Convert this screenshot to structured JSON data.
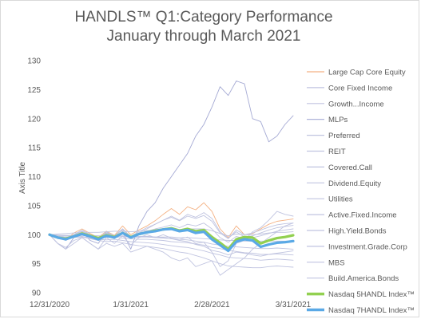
{
  "chart_data": {
    "type": "line",
    "title_line1": "HANDLS™ Q1:Category Performance",
    "title_line2": "January through March 2021",
    "ylabel": "Axis Title",
    "ylim": [
      90,
      130
    ],
    "yticks": [
      90,
      95,
      100,
      105,
      110,
      115,
      120,
      125,
      130
    ],
    "xlim": [
      "2020-12-31",
      "2021-03-31"
    ],
    "xtick_labels": [
      "12/31/2020",
      "1/31/2021",
      "2/28/2021",
      "3/31/2021"
    ],
    "grid": false,
    "legend_position": "right",
    "x": [
      0,
      3,
      6,
      9,
      12,
      15,
      18,
      21,
      24,
      27,
      30,
      33,
      36,
      39,
      42,
      45,
      48,
      51,
      54,
      57,
      60,
      63,
      66,
      69,
      72,
      75,
      78,
      81,
      84,
      87,
      90
    ],
    "series": [
      {
        "name": "Large Cap Core Equity",
        "color": "#f4b183",
        "width": 0.9,
        "values": [
          100,
          99.6,
          99.2,
          100.3,
          101,
          100.2,
          99.5,
          100.6,
          99.9,
          101.5,
          100,
          100.8,
          101.5,
          102.4,
          103.5,
          104.5,
          103.5,
          104.8,
          104.3,
          105.5,
          104,
          101,
          99.5,
          101.5,
          100,
          100.2,
          101,
          101.8,
          102.3,
          102.5,
          102.7
        ]
      },
      {
        "name": "Core Fixed Income",
        "color": "#c0c4e0",
        "width": 0.9,
        "values": [
          100,
          99.9,
          99.8,
          99.8,
          99.9,
          99.7,
          99.6,
          99.5,
          99.6,
          99.4,
          99.3,
          99.2,
          99.2,
          99.1,
          99,
          98.8,
          98.7,
          98.6,
          98.4,
          98.2,
          97.8,
          97.6,
          97.3,
          97.1,
          96.9,
          96.8,
          96.6,
          96.6,
          96.7,
          96.6,
          96.5
        ]
      },
      {
        "name": "Growth...Income",
        "color": "#c0c4e0",
        "width": 0.9,
        "values": [
          100,
          99.5,
          99,
          99.8,
          100.5,
          100,
          99.3,
          100.3,
          99.8,
          101,
          99.6,
          100.3,
          101,
          101.8,
          102.5,
          103.2,
          102.5,
          103.5,
          103,
          103.8,
          102.8,
          100.5,
          99.4,
          100.5,
          99.6,
          99.8,
          100.3,
          100.8,
          101.2,
          101.4,
          101.6
        ]
      },
      {
        "name": "MLPs",
        "color": "#a5aad4",
        "width": 0.9,
        "values": [
          100,
          98.5,
          97.5,
          99.5,
          100.5,
          99,
          98.5,
          100.5,
          99.5,
          100.5,
          97.5,
          101.5,
          104,
          105.5,
          108,
          110,
          112,
          114,
          117,
          119,
          122,
          125.5,
          124,
          126.5,
          126,
          120,
          119.5,
          116,
          117,
          119,
          120.5
        ]
      },
      {
        "name": "Preferred",
        "color": "#c0c4e0",
        "width": 0.9,
        "values": [
          100,
          99.8,
          99.6,
          99.8,
          100,
          99.8,
          99.5,
          99.7,
          99.6,
          99.8,
          99.5,
          99.6,
          99.7,
          99.6,
          99.5,
          99.3,
          99,
          98.8,
          98.3,
          98,
          97.3,
          97,
          96.5,
          97,
          96.8,
          96.5,
          96.3,
          96.6,
          96.8,
          97,
          97.2
        ]
      },
      {
        "name": "REIT",
        "color": "#c0c4e0",
        "width": 0.9,
        "values": [
          100,
          98.5,
          97.8,
          99,
          99.5,
          98.5,
          97.5,
          99.5,
          98.5,
          99.8,
          98.2,
          99.5,
          100,
          99.5,
          100,
          99.4,
          99.2,
          99.6,
          98.5,
          98.7,
          97,
          94.5,
          95.5,
          98.5,
          99,
          100.5,
          101.2,
          102.5,
          104,
          103.5,
          103.2
        ]
      },
      {
        "name": "Covered.Call",
        "color": "#c0c4e0",
        "width": 0.9,
        "values": [
          100,
          99.7,
          99.4,
          100,
          100.6,
          100,
          99.4,
          100.2,
          99.8,
          100.8,
          99.6,
          100.2,
          100.6,
          101,
          101.3,
          101.7,
          101.2,
          101.8,
          101.5,
          102,
          101,
          99.5,
          98.7,
          99.7,
          99.3,
          99.5,
          99.8,
          100.2,
          100.6,
          100.8,
          101
        ]
      },
      {
        "name": "Dividend.Equity",
        "color": "#c0c4e0",
        "width": 0.9,
        "values": [
          100,
          99.6,
          99.2,
          100,
          100.8,
          100,
          99.3,
          100.5,
          99.8,
          101,
          99.7,
          100.5,
          101.2,
          101.8,
          102.5,
          103,
          102.4,
          103.2,
          102.8,
          103.3,
          102.3,
          100.3,
          99.3,
          100.8,
          100,
          100.3,
          100.8,
          101.3,
          101.7,
          101.9,
          102
        ]
      },
      {
        "name": "Utilities",
        "color": "#c0c4e0",
        "width": 0.9,
        "values": [
          100,
          98.5,
          97.5,
          98.5,
          99.5,
          98.5,
          97.5,
          98.5,
          98,
          98.5,
          97,
          97.5,
          98,
          97.5,
          97,
          96,
          95.5,
          96,
          94.5,
          95,
          95.5,
          93,
          94,
          95,
          96,
          97.5,
          98.5,
          99.5,
          100.5,
          101.5,
          102
        ]
      },
      {
        "name": "Active.Fixed.Income",
        "color": "#c0c4e0",
        "width": 0.9,
        "values": [
          100,
          99.9,
          99.8,
          99.9,
          100,
          99.9,
          99.8,
          99.8,
          99.8,
          99.7,
          99.6,
          99.6,
          99.6,
          99.5,
          99.4,
          99.3,
          99.2,
          99.1,
          98.9,
          98.7,
          98.4,
          98.2,
          98,
          97.9,
          97.8,
          97.7,
          97.6,
          97.6,
          97.7,
          97.6,
          97.5
        ]
      },
      {
        "name": "High.Yield.Bonds",
        "color": "#c0c4e0",
        "width": 0.9,
        "values": [
          100,
          100.1,
          100.2,
          100.3,
          100.4,
          100.4,
          100.4,
          100.5,
          100.6,
          100.6,
          100.5,
          100.6,
          100.7,
          100.8,
          100.9,
          101,
          100.9,
          101,
          101,
          101,
          100.7,
          100.2,
          99.8,
          100.1,
          100,
          100,
          100.1,
          100.3,
          100.4,
          100.4,
          100.5
        ]
      },
      {
        "name": "Investment.Grade.Corp",
        "color": "#c0c4e0",
        "width": 0.9,
        "values": [
          100,
          99.8,
          99.6,
          99.6,
          99.7,
          99.4,
          99.2,
          99.1,
          99.2,
          99,
          98.8,
          98.7,
          98.6,
          98.5,
          98.3,
          98.1,
          97.9,
          97.8,
          97.5,
          97.2,
          96.8,
          96.5,
          96.1,
          96,
          95.9,
          95.8,
          95.6,
          95.7,
          95.8,
          95.7,
          95.6
        ]
      },
      {
        "name": "MBS",
        "color": "#c0c4e0",
        "width": 0.9,
        "values": [
          100,
          99.9,
          99.9,
          99.9,
          99.9,
          99.8,
          99.8,
          99.8,
          99.8,
          99.7,
          99.7,
          99.7,
          99.7,
          99.6,
          99.6,
          99.6,
          99.5,
          99.5,
          99.4,
          99.3,
          99.2,
          99.1,
          99,
          99,
          98.9,
          98.9,
          98.9,
          98.9,
          98.9,
          98.9,
          98.9
        ]
      },
      {
        "name": "Build.America.Bonds",
        "color": "#c0c4e0",
        "width": 0.9,
        "values": [
          100,
          99.8,
          99.5,
          99.5,
          99.6,
          99.3,
          99,
          98.8,
          98.9,
          98.6,
          98.3,
          98.1,
          98,
          97.8,
          97.6,
          97.3,
          97,
          96.8,
          96.4,
          96,
          95.5,
          95,
          94.6,
          94.5,
          94.4,
          94.3,
          94.3,
          94.5,
          94.6,
          94.5,
          94.4
        ]
      },
      {
        "name": "Nasdaq 5HANDL Index™",
        "color": "#92d050",
        "width": 3.2,
        "values": [
          100,
          99.5,
          99.3,
          99.7,
          100.2,
          99.8,
          99.4,
          99.9,
          99.6,
          100.3,
          99.6,
          100.1,
          100.4,
          100.7,
          100.9,
          101.1,
          100.7,
          101,
          100.6,
          100.8,
          99.6,
          98.6,
          97.5,
          99.2,
          99.6,
          99.5,
          98.5,
          99,
          99.4,
          99.6,
          99.9
        ]
      },
      {
        "name": "Nasdaq 7HANDL Index™",
        "color": "#5aa9e6",
        "width": 3.2,
        "values": [
          100,
          99.5,
          99.2,
          99.7,
          100.1,
          99.7,
          99.2,
          99.8,
          99.5,
          100.3,
          99.5,
          100.1,
          100.4,
          100.6,
          100.9,
          101,
          100.6,
          100.8,
          100.3,
          100.5,
          99.2,
          98.2,
          97.2,
          98.8,
          99.2,
          99,
          97.9,
          98.3,
          98.6,
          98.7,
          98.9
        ]
      }
    ]
  }
}
